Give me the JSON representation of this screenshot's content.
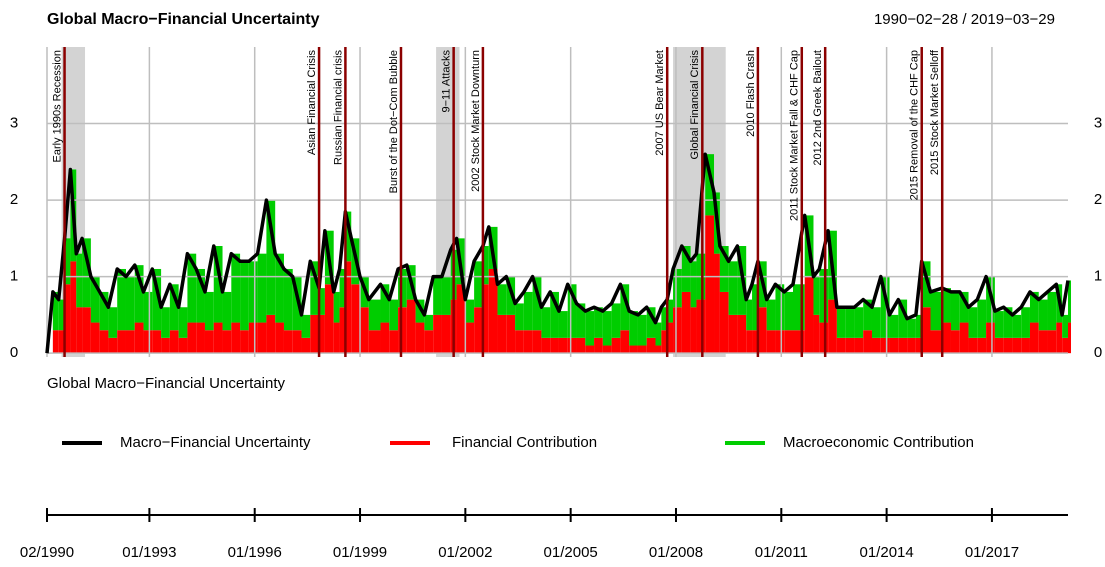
{
  "chart_data": {
    "type": "line",
    "title": "Global Macro−Financial Uncertainty",
    "date_range": "1990−02−28 / 2019−03−29",
    "xlabel": "Global Macro−Financial Uncertainty",
    "xlim": [
      "1990-02",
      "2019-03"
    ],
    "xticks": [
      {
        "value": "1990-02",
        "label": "02/1990"
      },
      {
        "value": "1993-01",
        "label": "01/1993"
      },
      {
        "value": "1996-01",
        "label": "01/1996"
      },
      {
        "value": "1999-01",
        "label": "01/1999"
      },
      {
        "value": "2002-01",
        "label": "01/2002"
      },
      {
        "value": "2005-01",
        "label": "01/2005"
      },
      {
        "value": "2008-01",
        "label": "01/2008"
      },
      {
        "value": "2011-01",
        "label": "01/2011"
      },
      {
        "value": "2014-01",
        "label": "01/2014"
      },
      {
        "value": "2017-01",
        "label": "01/2017"
      }
    ],
    "ylim": [
      -0.05,
      4.0
    ],
    "yticks": [
      0,
      1,
      2,
      3
    ],
    "grid": true,
    "legend": "bottom",
    "x": [
      "1990-02",
      "1990-04",
      "1990-06",
      "1990-08",
      "1990-10",
      "1990-12",
      "1991-02",
      "1991-05",
      "1991-08",
      "1991-11",
      "1992-02",
      "1992-05",
      "1992-08",
      "1992-11",
      "1993-02",
      "1993-05",
      "1993-08",
      "1993-11",
      "1994-02",
      "1994-05",
      "1994-08",
      "1994-11",
      "1995-02",
      "1995-05",
      "1995-08",
      "1995-11",
      "1996-02",
      "1996-05",
      "1996-08",
      "1996-11",
      "1997-02",
      "1997-05",
      "1997-08",
      "1997-11",
      "1998-01",
      "1998-04",
      "1998-06",
      "1998-08",
      "1998-10",
      "1999-01",
      "1999-04",
      "1999-08",
      "1999-11",
      "2000-02",
      "2000-05",
      "2000-08",
      "2000-11",
      "2001-02",
      "2001-05",
      "2001-08",
      "2001-10",
      "2002-01",
      "2002-04",
      "2002-07",
      "2002-09",
      "2002-12",
      "2003-03",
      "2003-06",
      "2003-09",
      "2003-12",
      "2004-03",
      "2004-06",
      "2004-09",
      "2004-12",
      "2005-03",
      "2005-06",
      "2005-09",
      "2005-12",
      "2006-03",
      "2006-06",
      "2006-09",
      "2006-12",
      "2007-03",
      "2007-06",
      "2007-08",
      "2007-10",
      "2007-12",
      "2008-03",
      "2008-06",
      "2008-08",
      "2008-11",
      "2009-02",
      "2009-04",
      "2009-07",
      "2009-10",
      "2010-01",
      "2010-03",
      "2010-05",
      "2010-08",
      "2010-11",
      "2011-02",
      "2011-05",
      "2011-09",
      "2011-12",
      "2012-02",
      "2012-05",
      "2012-08",
      "2012-11",
      "2013-02",
      "2013-05",
      "2013-08",
      "2013-11",
      "2014-02",
      "2014-05",
      "2014-08",
      "2014-11",
      "2015-01",
      "2015-04",
      "2015-08",
      "2015-11",
      "2016-02",
      "2016-05",
      "2016-08",
      "2016-11",
      "2017-02",
      "2017-05",
      "2017-08",
      "2017-11",
      "2018-02",
      "2018-05",
      "2018-08",
      "2018-11",
      "2019-01",
      "2019-03"
    ],
    "series": [
      {
        "name": "Macro−Financial Uncertainty",
        "color": "#000000",
        "values": [
          0,
          0.8,
          0.7,
          1.5,
          2.4,
          1.3,
          1.5,
          1.0,
          0.8,
          0.6,
          1.1,
          1.0,
          1.15,
          0.8,
          1.1,
          0.6,
          0.9,
          0.6,
          1.3,
          1.1,
          0.8,
          1.4,
          0.8,
          1.3,
          1.2,
          1.2,
          1.3,
          2.0,
          1.3,
          1.1,
          1.0,
          0.5,
          1.2,
          0.85,
          1.6,
          0.8,
          1.1,
          1.85,
          1.5,
          1.0,
          0.7,
          0.9,
          0.7,
          1.1,
          1.15,
          0.7,
          0.5,
          1.0,
          1.0,
          1.35,
          1.5,
          0.7,
          1.2,
          1.4,
          1.65,
          0.9,
          1.0,
          0.65,
          0.8,
          1.0,
          0.6,
          0.8,
          0.55,
          0.9,
          0.65,
          0.55,
          0.6,
          0.55,
          0.65,
          0.9,
          0.55,
          0.5,
          0.6,
          0.4,
          0.6,
          0.7,
          1.1,
          1.4,
          1.2,
          1.3,
          2.6,
          2.1,
          1.4,
          1.2,
          1.4,
          0.7,
          0.9,
          1.2,
          0.7,
          0.9,
          0.8,
          0.9,
          1.8,
          1.0,
          1.1,
          1.6,
          0.6,
          0.6,
          0.6,
          0.7,
          0.6,
          1.0,
          0.5,
          0.7,
          0.45,
          0.5,
          1.2,
          0.8,
          0.85,
          0.8,
          0.8,
          0.6,
          0.7,
          1.0,
          0.55,
          0.6,
          0.5,
          0.6,
          0.8,
          0.7,
          0.8,
          0.9,
          0.5,
          0.95
        ]
      },
      {
        "name": "Financial Contribution",
        "color": "#ff0000",
        "values": [
          0,
          0.3,
          0.3,
          0.9,
          1.2,
          0.6,
          0.6,
          0.4,
          0.3,
          0.2,
          0.3,
          0.3,
          0.4,
          0.3,
          0.3,
          0.2,
          0.3,
          0.2,
          0.4,
          0.4,
          0.3,
          0.4,
          0.3,
          0.4,
          0.3,
          0.4,
          0.4,
          0.5,
          0.4,
          0.3,
          0.3,
          0.2,
          0.5,
          0.5,
          0.9,
          0.4,
          0.6,
          1.2,
          0.9,
          0.6,
          0.3,
          0.4,
          0.3,
          0.6,
          0.7,
          0.4,
          0.3,
          0.5,
          0.5,
          0.7,
          0.9,
          0.4,
          0.6,
          0.9,
          1.1,
          0.5,
          0.5,
          0.3,
          0.3,
          0.3,
          0.2,
          0.2,
          0.2,
          0.2,
          0.2,
          0.1,
          0.2,
          0.1,
          0.2,
          0.3,
          0.1,
          0.1,
          0.2,
          0.1,
          0.3,
          0.4,
          0.6,
          0.8,
          0.6,
          0.7,
          1.8,
          1.3,
          0.8,
          0.5,
          0.5,
          0.3,
          0.3,
          0.6,
          0.3,
          0.3,
          0.3,
          0.3,
          1.0,
          0.5,
          0.4,
          0.7,
          0.2,
          0.2,
          0.2,
          0.3,
          0.2,
          0.2,
          0.2,
          0.2,
          0.2,
          0.2,
          0.6,
          0.3,
          0.4,
          0.3,
          0.4,
          0.2,
          0.2,
          0.4,
          0.2,
          0.2,
          0.2,
          0.2,
          0.4,
          0.3,
          0.3,
          0.4,
          0.2,
          0.4
        ]
      },
      {
        "name": "Macroeconomic Contribution",
        "color": "#00cd00",
        "values": [
          0,
          0.5,
          0.4,
          0.6,
          1.2,
          0.7,
          0.9,
          0.6,
          0.5,
          0.4,
          0.8,
          0.7,
          0.75,
          0.5,
          0.8,
          0.4,
          0.6,
          0.4,
          0.9,
          0.7,
          0.5,
          1.0,
          0.5,
          0.9,
          0.9,
          0.8,
          0.9,
          1.5,
          0.9,
          0.8,
          0.7,
          0.3,
          0.7,
          0.35,
          0.7,
          0.4,
          0.5,
          0.65,
          0.6,
          0.4,
          0.4,
          0.5,
          0.4,
          0.5,
          0.45,
          0.3,
          0.2,
          0.5,
          0.5,
          0.65,
          0.6,
          0.3,
          0.6,
          0.5,
          0.55,
          0.4,
          0.5,
          0.35,
          0.5,
          0.7,
          0.4,
          0.6,
          0.35,
          0.7,
          0.45,
          0.45,
          0.4,
          0.45,
          0.45,
          0.6,
          0.45,
          0.4,
          0.4,
          0.3,
          0.3,
          0.3,
          0.5,
          0.6,
          0.6,
          0.6,
          0.8,
          0.8,
          0.6,
          0.7,
          0.9,
          0.4,
          0.6,
          0.6,
          0.4,
          0.6,
          0.5,
          0.6,
          0.8,
          0.5,
          0.7,
          0.9,
          0.4,
          0.4,
          0.4,
          0.4,
          0.4,
          0.8,
          0.3,
          0.5,
          0.25,
          0.3,
          0.6,
          0.5,
          0.45,
          0.5,
          0.4,
          0.4,
          0.5,
          0.6,
          0.35,
          0.4,
          0.3,
          0.4,
          0.4,
          0.4,
          0.5,
          0.5,
          0.3,
          0.55
        ]
      }
    ],
    "shaded_periods": [
      {
        "start": "1990-07",
        "end": "1991-03"
      },
      {
        "start": "2001-03",
        "end": "2001-11"
      },
      {
        "start": "2007-12",
        "end": "2009-06"
      }
    ],
    "events": [
      {
        "date": "1990-08",
        "label": "Early 1990s Recession"
      },
      {
        "date": "1997-11",
        "label": "Asian Financial Crisis"
      },
      {
        "date": "1998-08",
        "label": "Russian Financial crisis"
      },
      {
        "date": "2000-03",
        "label": "Burst of the Dot−Com Bubble"
      },
      {
        "date": "2001-09",
        "label": "9−11 Attacks"
      },
      {
        "date": "2002-07",
        "label": "2002 Stock Market Downturn"
      },
      {
        "date": "2007-10",
        "label": "2007 US Bear Market"
      },
      {
        "date": "2008-10",
        "label": "Global Financial Crisis"
      },
      {
        "date": "2010-05",
        "label": "2010 Flash Crash"
      },
      {
        "date": "2011-08",
        "label": "2011 Stock Market Fall & CHF Cap"
      },
      {
        "date": "2012-04",
        "label": "2012 2nd Greek Bailout"
      },
      {
        "date": "2015-01",
        "label": "2015 Removal of the CHF Cap"
      },
      {
        "date": "2015-08",
        "label": "2015 Stock Market Selloff"
      }
    ]
  }
}
